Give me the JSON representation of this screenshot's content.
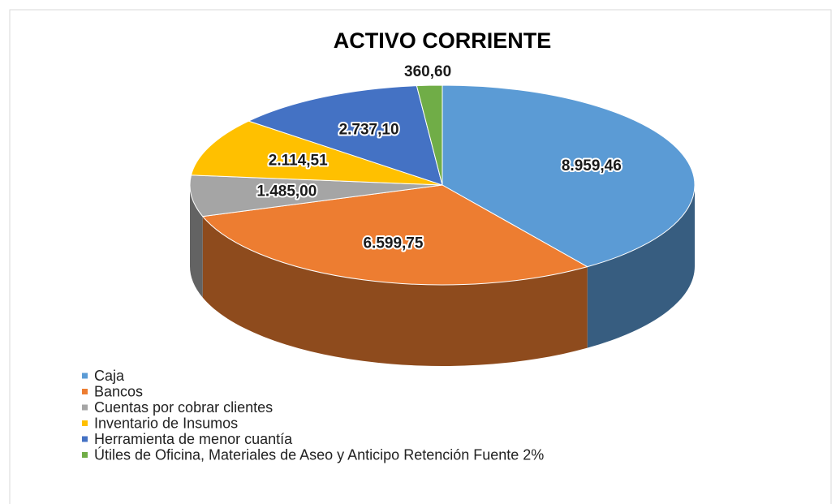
{
  "chart_data": {
    "type": "pie",
    "title": "ACTIVO CORRIENTE",
    "categories": [
      "Caja",
      "Bancos",
      "Cuentas por cobrar clientes",
      "Inventario de Insumos",
      "Herramienta de menor cuantía",
      "Útiles de Oficina, Materiales de Aseo y Anticipo Retención Fuente 2%"
    ],
    "values": [
      8959.46,
      6599.75,
      1485.0,
      2114.51,
      2737.1,
      360.6
    ],
    "value_labels": [
      "8.959,46",
      "6.599,75",
      "1.485,00",
      "2.114,51",
      "2.737,10",
      "360,60"
    ],
    "colors": [
      "#5b9bd5",
      "#ed7d31",
      "#a5a5a5",
      "#ffc000",
      "#4472c4",
      "#70ad47"
    ],
    "legend": "bottom-left"
  }
}
